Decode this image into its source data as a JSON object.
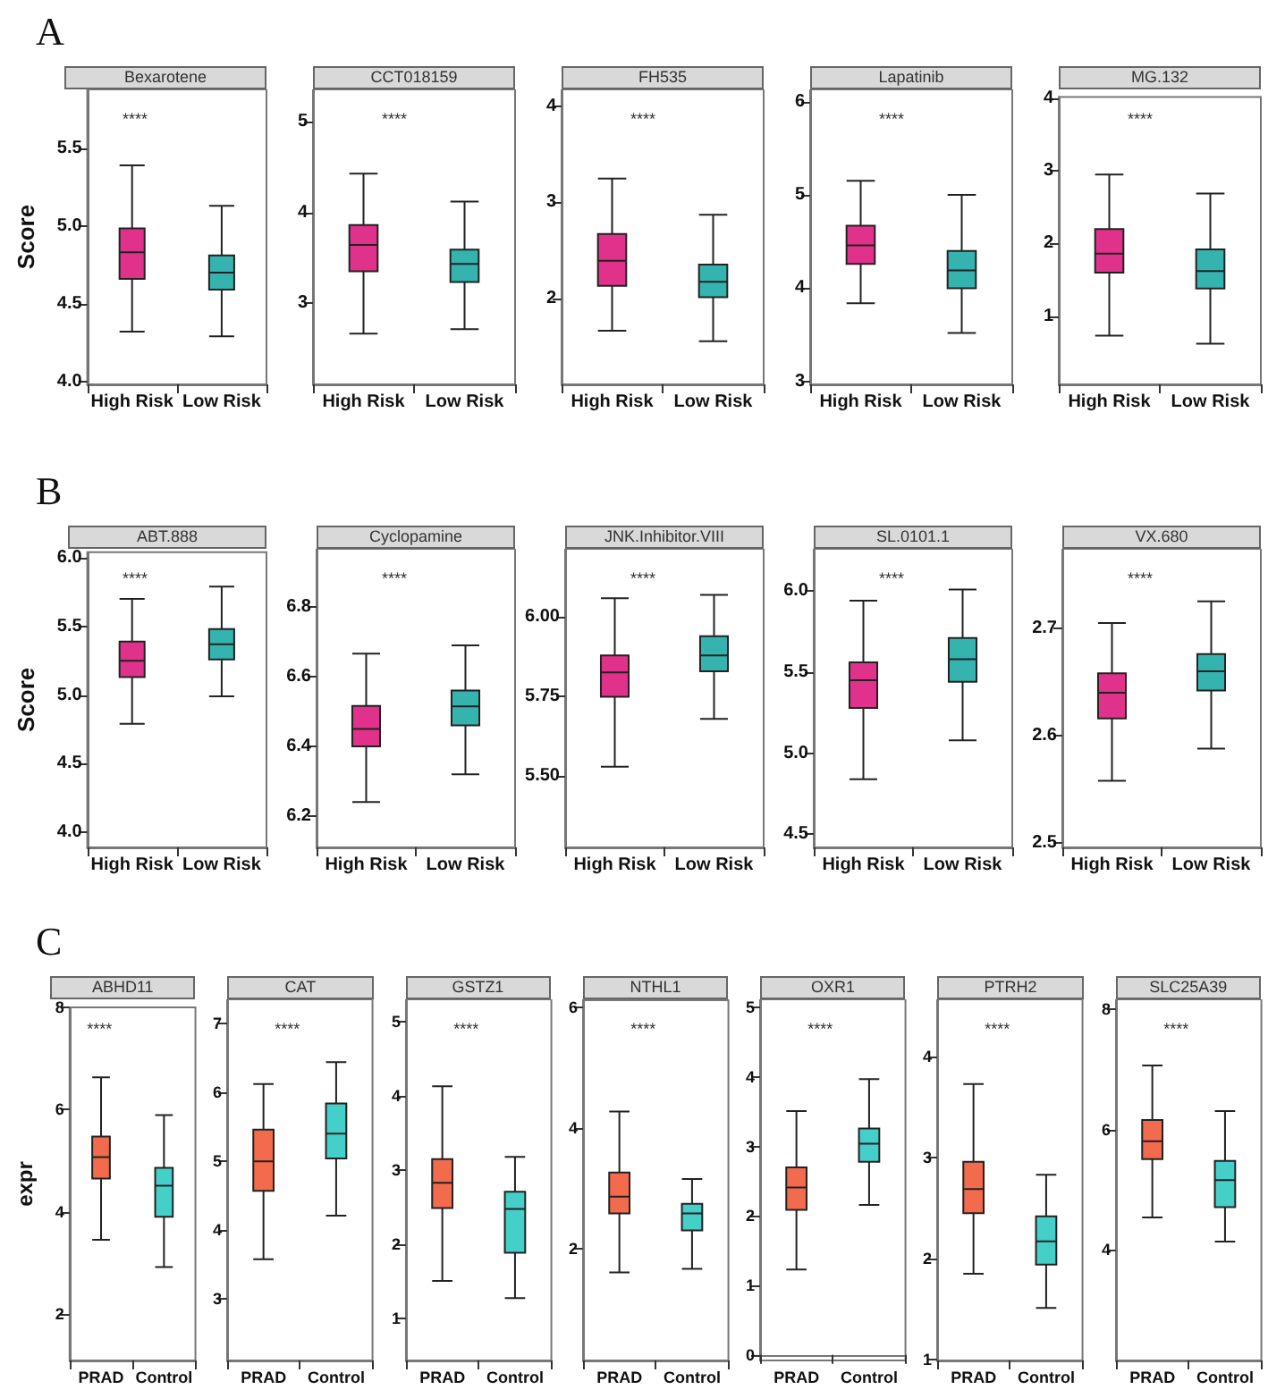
{
  "chart_data": [
    {
      "type": "box",
      "subtitle": "A",
      "title": "Bexarotene",
      "ylabel": "Score",
      "categories": [
        "High Risk",
        "Low Risk"
      ],
      "colors": [
        "#e0328a",
        "#35b3ae"
      ],
      "ylim": [
        3.98,
        5.88
      ],
      "yticks": [
        {
          "value": 4,
          "label": "4.0"
        },
        4.5,
        {
          "value": 5,
          "label": "5.0"
        },
        5.5
      ],
      "annotations": [
        "****"
      ],
      "boxes": [
        {
          "low": 4.32,
          "q1": 4.66,
          "median": 4.83,
          "q3": 4.985,
          "high": 5.39
        },
        {
          "low": 4.29,
          "q1": 4.59,
          "median": 4.7,
          "q3": 4.81,
          "high": 5.13
        }
      ]
    },
    {
      "type": "box",
      "title": "CCT018159",
      "categories": [
        "High Risk",
        "Low Risk"
      ],
      "colors": [
        "#e0328a",
        "#35b3ae"
      ],
      "ylim": [
        2.1,
        5.36
      ],
      "yticks": [
        3,
        4,
        5
      ],
      "annotations": [
        "****"
      ],
      "boxes": [
        {
          "low": 2.66,
          "q1": 3.35,
          "median": 3.64,
          "q3": 3.86,
          "high": 4.43
        },
        {
          "low": 2.71,
          "q1": 3.23,
          "median": 3.43,
          "q3": 3.59,
          "high": 4.12
        }
      ]
    },
    {
      "type": "box",
      "title": "FH535",
      "categories": [
        "High Risk",
        "Low Risk"
      ],
      "colors": [
        "#e0328a",
        "#35b3ae"
      ],
      "ylim": [
        1.1,
        4.18
      ],
      "yticks": [
        2,
        3,
        4
      ],
      "annotations": [
        "****"
      ],
      "boxes": [
        {
          "low": 1.66,
          "q1": 2.13,
          "median": 2.39,
          "q3": 2.67,
          "high": 3.25
        },
        {
          "low": 1.55,
          "q1": 2.01,
          "median": 2.17,
          "q3": 2.35,
          "high": 2.87
        }
      ]
    },
    {
      "type": "box",
      "title": "Lapatinib",
      "categories": [
        "High Risk",
        "Low Risk"
      ],
      "colors": [
        "#e0328a",
        "#35b3ae"
      ],
      "ylim": [
        2.97,
        6.13
      ],
      "yticks": [
        3,
        4,
        5,
        6
      ],
      "annotations": [
        "****"
      ],
      "boxes": [
        {
          "low": 3.84,
          "q1": 4.26,
          "median": 4.46,
          "q3": 4.67,
          "high": 5.15
        },
        {
          "low": 3.52,
          "q1": 4.0,
          "median": 4.19,
          "q3": 4.4,
          "high": 5.0
        }
      ]
    },
    {
      "type": "box",
      "title": "MG.132",
      "categories": [
        "High Risk",
        "Low Risk"
      ],
      "colors": [
        "#e0328a",
        "#35b3ae"
      ],
      "ylim": [
        0.06,
        4.02
      ],
      "yticks": [
        1,
        2,
        3,
        4
      ],
      "annotations": [
        "****"
      ],
      "boxes": [
        {
          "low": 0.73,
          "q1": 1.6,
          "median": 1.86,
          "q3": 2.2,
          "high": 2.95
        },
        {
          "low": 0.62,
          "q1": 1.38,
          "median": 1.62,
          "q3": 1.92,
          "high": 2.69
        }
      ]
    },
    {
      "type": "box",
      "subtitle": "B",
      "title": "ABT.888",
      "ylabel": "Score",
      "categories": [
        "High Risk",
        "Low Risk"
      ],
      "colors": [
        "#e0328a",
        "#35b3ae"
      ],
      "ylim": [
        3.89,
        6.04
      ],
      "yticks": [
        {
          "value": 4,
          "label": "4.0"
        },
        4.5,
        {
          "value": 5,
          "label": "5.0"
        },
        5.5,
        {
          "value": 6,
          "label": "6.0"
        }
      ],
      "annotations": [
        "****"
      ],
      "boxes": [
        {
          "low": 4.79,
          "q1": 5.13,
          "median": 5.25,
          "q3": 5.39,
          "high": 5.7
        },
        {
          "low": 4.99,
          "q1": 5.26,
          "median": 5.37,
          "q3": 5.48,
          "high": 5.79
        }
      ]
    },
    {
      "type": "box",
      "title": "Cyclopamine",
      "categories": [
        "High Risk",
        "Low Risk"
      ],
      "colors": [
        "#e0328a",
        "#35b3ae"
      ],
      "ylim": [
        6.11,
        6.967
      ],
      "yticks": [
        6.2,
        6.4,
        6.6,
        6.8
      ],
      "annotations": [
        "****"
      ],
      "boxes": [
        {
          "low": 6.24,
          "q1": 6.4,
          "median": 6.45,
          "q3": 6.516,
          "high": 6.666
        },
        {
          "low": 6.32,
          "q1": 6.46,
          "median": 6.515,
          "q3": 6.56,
          "high": 6.69
        }
      ]
    },
    {
      "type": "box",
      "title": "JNK.Inhibitor.VIII",
      "categories": [
        "High Risk",
        "Low Risk"
      ],
      "colors": [
        "#e0328a",
        "#35b3ae"
      ],
      "ylim": [
        5.276,
        6.215
      ],
      "yticks": [
        {
          "value": 5.5,
          "label": "5.50"
        },
        5.75,
        {
          "value": 6,
          "label": "6.00"
        }
      ],
      "annotations": [
        "****"
      ],
      "boxes": [
        {
          "low": 5.53,
          "q1": 5.75,
          "median": 5.826,
          "q3": 5.88,
          "high": 6.06
        },
        {
          "low": 5.68,
          "q1": 5.83,
          "median": 5.88,
          "q3": 5.94,
          "high": 6.07
        }
      ]
    },
    {
      "type": "box",
      "title": "SL.0101.1",
      "categories": [
        "High Risk",
        "Low Risk"
      ],
      "colors": [
        "#e0328a",
        "#35b3ae"
      ],
      "ylim": [
        4.42,
        6.26
      ],
      "yticks": [
        4.5,
        {
          "value": 5,
          "label": "5.0"
        },
        5.5,
        {
          "value": 6,
          "label": "6.0"
        }
      ],
      "annotations": [
        "****"
      ],
      "boxes": [
        {
          "low": 4.84,
          "q1": 5.28,
          "median": 5.45,
          "q3": 5.56,
          "high": 5.94
        },
        {
          "low": 5.08,
          "q1": 5.44,
          "median": 5.58,
          "q3": 5.71,
          "high": 6.01
        }
      ]
    },
    {
      "type": "box",
      "title": "VX.680",
      "categories": [
        "High Risk",
        "Low Risk"
      ],
      "colors": [
        "#e0328a",
        "#35b3ae"
      ],
      "ylim": [
        2.496,
        2.774
      ],
      "yticks": [
        2.5,
        2.6,
        2.7
      ],
      "annotations": [
        "****"
      ],
      "boxes": [
        {
          "low": 2.558,
          "q1": 2.616,
          "median": 2.64,
          "q3": 2.658,
          "high": 2.705
        },
        {
          "low": 2.588,
          "q1": 2.642,
          "median": 2.66,
          "q3": 2.676,
          "high": 2.725
        }
      ]
    },
    {
      "type": "box",
      "subtitle": "C",
      "title": "ABHD11",
      "ylabel": "expr",
      "categories": [
        "PRAD",
        "Control"
      ],
      "colors": [
        "#f26b4c",
        "#45cfc9"
      ],
      "ylim": [
        1.09,
        8
      ],
      "yticks": [
        2,
        4,
        6,
        8
      ],
      "annotations": [
        "****"
      ],
      "boxes": [
        {
          "low": 3.45,
          "q1": 4.65,
          "median": 5.07,
          "q3": 5.47,
          "high": 6.63
        },
        {
          "low": 2.92,
          "q1": 3.9,
          "median": 4.51,
          "q3": 4.86,
          "high": 5.89
        }
      ]
    },
    {
      "type": "box",
      "title": "CAT",
      "categories": [
        "PRAD",
        "Control"
      ],
      "colors": [
        "#f26b4c",
        "#45cfc9"
      ],
      "ylim": [
        2.11,
        7.35
      ],
      "yticks": [
        3,
        4,
        5,
        6,
        7
      ],
      "annotations": [
        "****"
      ],
      "boxes": [
        {
          "low": 3.58,
          "q1": 4.57,
          "median": 5.0,
          "q3": 5.46,
          "high": 6.12
        },
        {
          "low": 4.21,
          "q1": 5.04,
          "median": 5.4,
          "q3": 5.84,
          "high": 6.44
        }
      ]
    },
    {
      "type": "box",
      "title": "GSTZ1",
      "categories": [
        "PRAD",
        "Control"
      ],
      "colors": [
        "#f26b4c",
        "#45cfc9"
      ],
      "ylim": [
        0.44,
        5.3
      ],
      "yticks": [
        1,
        2,
        3,
        4,
        5
      ],
      "annotations": [
        "****"
      ],
      "boxes": [
        {
          "low": 1.51,
          "q1": 2.49,
          "median": 2.83,
          "q3": 3.15,
          "high": 4.13
        },
        {
          "low": 1.28,
          "q1": 1.89,
          "median": 2.48,
          "q3": 2.71,
          "high": 3.18
        }
      ]
    },
    {
      "type": "box",
      "title": "NTHL1",
      "categories": [
        "PRAD",
        "Control"
      ],
      "colors": [
        "#f26b4c",
        "#45cfc9"
      ],
      "ylim": [
        0.14,
        6.12
      ],
      "yticks": [
        2,
        4,
        6
      ],
      "annotations": [
        "****"
      ],
      "boxes": [
        {
          "low": 1.6,
          "q1": 2.58,
          "median": 2.86,
          "q3": 3.26,
          "high": 4.27
        },
        {
          "low": 1.66,
          "q1": 2.3,
          "median": 2.58,
          "q3": 2.74,
          "high": 3.15
        }
      ]
    },
    {
      "type": "box",
      "title": "OXR1",
      "categories": [
        "PRAD",
        "Control"
      ],
      "colors": [
        "#f26b4c",
        "#45cfc9"
      ],
      "ylim": [
        -0.08,
        5.12
      ],
      "yticks": [
        0,
        1,
        2,
        3,
        4,
        5
      ],
      "annotations": [
        "****"
      ],
      "boxes": [
        {
          "low": 1.23,
          "q1": 2.09,
          "median": 2.41,
          "q3": 2.7,
          "high": 3.51
        },
        {
          "low": 2.16,
          "q1": 2.78,
          "median": 3.04,
          "q3": 3.26,
          "high": 3.97
        }
      ]
    },
    {
      "type": "box",
      "title": "PTRH2",
      "categories": [
        "PRAD",
        "Control"
      ],
      "colors": [
        "#f26b4c",
        "#45cfc9"
      ],
      "ylim": [
        0.99,
        4.57
      ],
      "yticks": [
        1,
        2,
        3,
        4
      ],
      "annotations": [
        "****"
      ],
      "boxes": [
        {
          "low": 1.85,
          "q1": 2.45,
          "median": 2.69,
          "q3": 2.96,
          "high": 3.73
        },
        {
          "low": 1.51,
          "q1": 1.94,
          "median": 2.17,
          "q3": 2.42,
          "high": 2.83
        }
      ]
    },
    {
      "type": "box",
      "title": "SLC25A39",
      "categories": [
        "PRAD",
        "Control"
      ],
      "colors": [
        "#f26b4c",
        "#45cfc9"
      ],
      "ylim": [
        2.16,
        8.17
      ],
      "yticks": [
        4,
        6,
        8
      ],
      "annotations": [
        "****"
      ],
      "boxes": [
        {
          "low": 4.54,
          "q1": 5.51,
          "median": 5.81,
          "q3": 6.16,
          "high": 7.07
        },
        {
          "low": 4.14,
          "q1": 4.71,
          "median": 5.16,
          "q3": 5.48,
          "high": 6.31
        }
      ]
    }
  ]
}
